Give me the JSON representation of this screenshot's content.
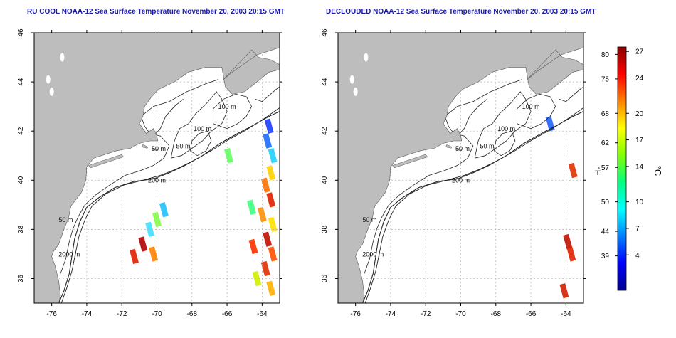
{
  "panels": [
    {
      "id": "left",
      "title": "RU COOL NOAA-12 Sea Surface Temperature November 20, 2003 20:15 GMT",
      "sst_patches": [
        {
          "lon": -63.6,
          "lat": 42.2,
          "c": "#1a3cff"
        },
        {
          "lon": -63.7,
          "lat": 41.6,
          "c": "#1a6cff"
        },
        {
          "lon": -63.4,
          "lat": 41.0,
          "c": "#20d0ff"
        },
        {
          "lon": -63.5,
          "lat": 40.3,
          "c": "#ffd000"
        },
        {
          "lon": -63.8,
          "lat": 39.8,
          "c": "#ff7000"
        },
        {
          "lon": -63.5,
          "lat": 39.2,
          "c": "#e02000"
        },
        {
          "lon": -64.0,
          "lat": 38.6,
          "c": "#ff9000"
        },
        {
          "lon": -63.4,
          "lat": 38.2,
          "c": "#ffe000"
        },
        {
          "lon": -63.7,
          "lat": 37.6,
          "c": "#c01000"
        },
        {
          "lon": -63.4,
          "lat": 37.0,
          "c": "#ff5000"
        },
        {
          "lon": -63.8,
          "lat": 36.4,
          "c": "#e03000"
        },
        {
          "lon": -63.5,
          "lat": 35.6,
          "c": "#ffb000"
        },
        {
          "lon": -64.3,
          "lat": 36.0,
          "c": "#d0f000"
        },
        {
          "lon": -64.6,
          "lat": 38.9,
          "c": "#40ff80"
        },
        {
          "lon": -64.5,
          "lat": 37.3,
          "c": "#ff3000"
        },
        {
          "lon": -70.0,
          "lat": 38.4,
          "c": "#80ff40"
        },
        {
          "lon": -70.4,
          "lat": 38.0,
          "c": "#40e0ff"
        },
        {
          "lon": -70.8,
          "lat": 37.4,
          "c": "#b00000"
        },
        {
          "lon": -70.2,
          "lat": 37.0,
          "c": "#ff8000"
        },
        {
          "lon": -69.6,
          "lat": 38.8,
          "c": "#20c0ff"
        },
        {
          "lon": -71.3,
          "lat": 36.9,
          "c": "#e02000"
        },
        {
          "lon": -65.9,
          "lat": 41.0,
          "c": "#60ff60"
        }
      ]
    },
    {
      "id": "right",
      "title": "DECLOUDED NOAA-12 Sea Surface Temperature November 20, 2003 20:15 GMT",
      "sst_patches": [
        {
          "lon": -63.9,
          "lat": 37.5,
          "c": "#c01000"
        },
        {
          "lon": -63.7,
          "lat": 37.0,
          "c": "#e02000"
        },
        {
          "lon": -64.1,
          "lat": 35.5,
          "c": "#d02000"
        },
        {
          "lon": -63.6,
          "lat": 40.4,
          "c": "#e03000"
        },
        {
          "lon": -64.9,
          "lat": 42.3,
          "c": "#2060ff"
        }
      ]
    }
  ],
  "axes": {
    "x_ticks": [
      -76,
      -74,
      -72,
      -70,
      -68,
      -66,
      -64
    ],
    "y_ticks": [
      36,
      38,
      40,
      42,
      44,
      46
    ],
    "lon_range": [
      -77,
      -63
    ],
    "lat_range": [
      35,
      46
    ]
  },
  "isobath_labels": [
    {
      "text": "100 m",
      "lon": -66.0,
      "lat": 42.9
    },
    {
      "text": "100 m",
      "lon": -67.4,
      "lat": 42.0
    },
    {
      "text": "50 m",
      "lon": -68.5,
      "lat": 41.3
    },
    {
      "text": "50 m",
      "lon": -69.9,
      "lat": 41.2
    },
    {
      "text": "200 m",
      "lon": -70.0,
      "lat": 39.9
    },
    {
      "text": "50 m",
      "lon": -75.2,
      "lat": 38.3
    },
    {
      "text": "2000 m",
      "lon": -75.0,
      "lat": 36.9
    }
  ],
  "colorbar": {
    "f_label": "°F",
    "c_label": "°C",
    "f_ticks": [
      "80",
      "75",
      "68",
      "62",
      "57",
      "50",
      "44",
      "39"
    ],
    "c_ticks": [
      "27",
      "24",
      "20",
      "17",
      "14",
      "10",
      "7",
      "4"
    ],
    "f_values": [
      80,
      75,
      68,
      62,
      57,
      50,
      44,
      39
    ],
    "c_values": [
      27,
      24,
      20,
      17,
      14,
      10,
      7,
      4
    ],
    "c_range": [
      0,
      27.5
    ],
    "colors": [
      "#00008b",
      "#0000ff",
      "#0080ff",
      "#00ffff",
      "#00ff80",
      "#80ff00",
      "#ffff00",
      "#ff8000",
      "#ff0000",
      "#8b0000"
    ]
  }
}
